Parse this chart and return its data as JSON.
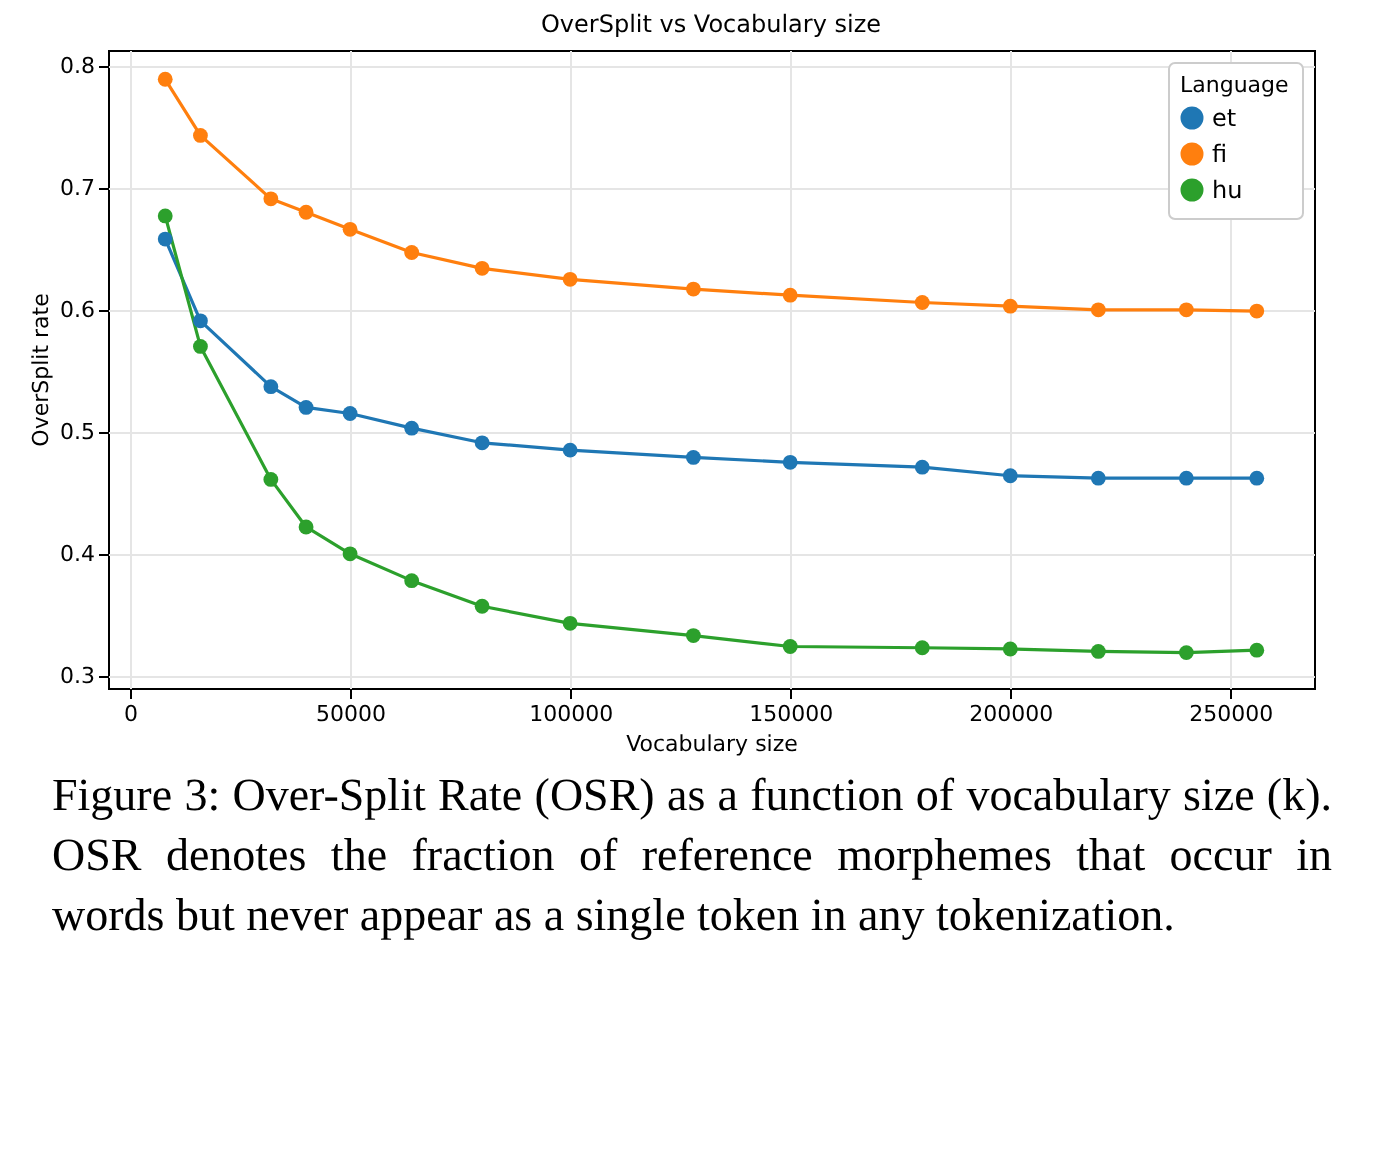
{
  "chart_data": {
    "type": "line",
    "title": "OverSplit vs Vocabulary size",
    "xlabel": "Vocabulary size",
    "ylabel": "OverSplit rate",
    "legend_title": "Language",
    "x": [
      8000,
      16000,
      32000,
      40000,
      50000,
      64000,
      80000,
      100000,
      128000,
      150000,
      180000,
      200000,
      220000,
      240000,
      256000
    ],
    "series": [
      {
        "name": "et",
        "color": "#1f77b4",
        "values": [
          0.658,
          0.591,
          0.537,
          0.52,
          0.515,
          0.503,
          0.491,
          0.485,
          0.479,
          0.475,
          0.471,
          0.464,
          0.462,
          0.462,
          0.462
        ]
      },
      {
        "name": "fi",
        "color": "#ff7f0e",
        "values": [
          0.789,
          0.743,
          0.691,
          0.68,
          0.666,
          0.647,
          0.634,
          0.625,
          0.617,
          0.612,
          0.606,
          0.603,
          0.6,
          0.6,
          0.599
        ]
      },
      {
        "name": "hu",
        "color": "#2ca02c",
        "values": [
          0.677,
          0.57,
          0.461,
          0.422,
          0.4,
          0.378,
          0.357,
          0.343,
          0.333,
          0.324,
          0.323,
          0.322,
          0.32,
          0.319,
          0.321
        ]
      }
    ],
    "xlim": [
      -5000,
      269000
    ],
    "xticks": [
      0,
      50000,
      100000,
      150000,
      200000,
      250000
    ],
    "ylim": [
      0.29,
      0.813
    ],
    "yticks": [
      0.3,
      0.4,
      0.5,
      0.6,
      0.7,
      0.8
    ],
    "grid": true,
    "legend": "top right",
    "marker": "circle",
    "line_style": "solid",
    "annotations": [
      "Figure 3: Over-Split Rate (OSR) as a function of vocabulary size (k). OSR denotes the fraction of reference morphemes that occur in words but never appear as a single token in any tokenization."
    ]
  }
}
